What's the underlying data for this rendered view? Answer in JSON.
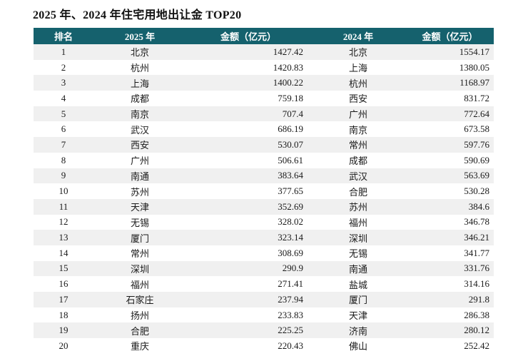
{
  "title": "2025 年、2024 年住宅用地出让金 TOP20",
  "colors": {
    "header_bg": "#15616d",
    "header_text": "#ffffff",
    "row_alt_bg": "#f0f0f0",
    "row_bg": "#ffffff"
  },
  "chart_data": {
    "type": "table",
    "title": "2025 年、2024 年住宅用地出让金 TOP20",
    "columns": [
      "排名",
      "2025 年",
      "金额（亿元）",
      "2024 年",
      "金额（亿元）"
    ],
    "rows": [
      [
        "1",
        "北京",
        "1427.42",
        "北京",
        "1554.17"
      ],
      [
        "2",
        "杭州",
        "1420.83",
        "上海",
        "1380.05"
      ],
      [
        "3",
        "上海",
        "1400.22",
        "杭州",
        "1168.97"
      ],
      [
        "4",
        "成都",
        "759.18",
        "西安",
        "831.72"
      ],
      [
        "5",
        "南京",
        "707.4",
        "广州",
        "772.64"
      ],
      [
        "6",
        "武汉",
        "686.19",
        "南京",
        "673.58"
      ],
      [
        "7",
        "西安",
        "530.07",
        "常州",
        "597.76"
      ],
      [
        "8",
        "广州",
        "506.61",
        "成都",
        "590.69"
      ],
      [
        "9",
        "南通",
        "383.64",
        "武汉",
        "563.69"
      ],
      [
        "10",
        "苏州",
        "377.65",
        "合肥",
        "530.28"
      ],
      [
        "11",
        "天津",
        "352.69",
        "苏州",
        "384.6"
      ],
      [
        "12",
        "无锡",
        "328.02",
        "福州",
        "346.78"
      ],
      [
        "13",
        "厦门",
        "323.14",
        "深圳",
        "346.21"
      ],
      [
        "14",
        "常州",
        "308.69",
        "无锡",
        "341.77"
      ],
      [
        "15",
        "深圳",
        "290.9",
        "南通",
        "331.76"
      ],
      [
        "16",
        "福州",
        "271.41",
        "盐城",
        "314.16"
      ],
      [
        "17",
        "石家庄",
        "237.94",
        "厦门",
        "291.8"
      ],
      [
        "18",
        "扬州",
        "233.83",
        "天津",
        "286.38"
      ],
      [
        "19",
        "合肥",
        "225.25",
        "济南",
        "280.12"
      ],
      [
        "20",
        "重庆",
        "220.43",
        "佛山",
        "252.42"
      ]
    ]
  }
}
